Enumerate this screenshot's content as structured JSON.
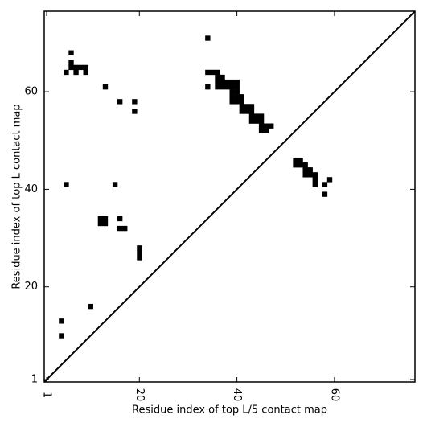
{
  "chart_data": {
    "type": "heatmap",
    "xlabel": "Residue index of top L/5 contact map",
    "ylabel": "Residue index of top L contact map",
    "xlim": [
      0.5,
      76.5
    ],
    "ylim": [
      0.5,
      76.5
    ],
    "xticks": [
      1,
      20,
      40,
      60
    ],
    "yticks": [
      1,
      20,
      40,
      60
    ],
    "color": "#000000",
    "x": [
      6,
      5,
      6,
      7,
      8,
      9,
      6,
      7,
      9,
      13,
      16,
      19,
      19,
      34,
      34,
      34,
      35,
      36,
      36,
      37,
      36,
      37,
      38,
      39,
      40,
      36,
      37,
      38,
      39,
      40,
      39,
      40,
      39,
      40,
      41,
      39,
      40,
      41,
      41,
      42,
      43,
      41,
      42,
      43,
      43,
      44,
      45,
      43,
      44,
      45,
      45,
      46,
      47,
      45,
      46,
      5,
      15,
      12,
      13,
      12,
      13,
      16,
      16,
      17,
      20,
      20,
      20,
      10,
      4,
      4,
      52,
      53,
      52,
      53,
      54,
      54,
      55,
      54,
      55,
      56,
      56,
      56,
      58,
      59,
      58
    ],
    "y": [
      68,
      64,
      65,
      65,
      65,
      65,
      66,
      64,
      64,
      61,
      58,
      58,
      56,
      71,
      61,
      64,
      64,
      64,
      63,
      63,
      62,
      62,
      62,
      62,
      62,
      61,
      61,
      61,
      61,
      61,
      60,
      60,
      59,
      59,
      59,
      58,
      58,
      58,
      57,
      57,
      57,
      56,
      56,
      56,
      55,
      55,
      55,
      54,
      54,
      54,
      53,
      53,
      53,
      52,
      52,
      41,
      41,
      34,
      34,
      33,
      33,
      34,
      32,
      32,
      28,
      27,
      26,
      16,
      13,
      10,
      46,
      46,
      45,
      45,
      45,
      44,
      44,
      43,
      43,
      43,
      42,
      41,
      41,
      42,
      39
    ]
  }
}
